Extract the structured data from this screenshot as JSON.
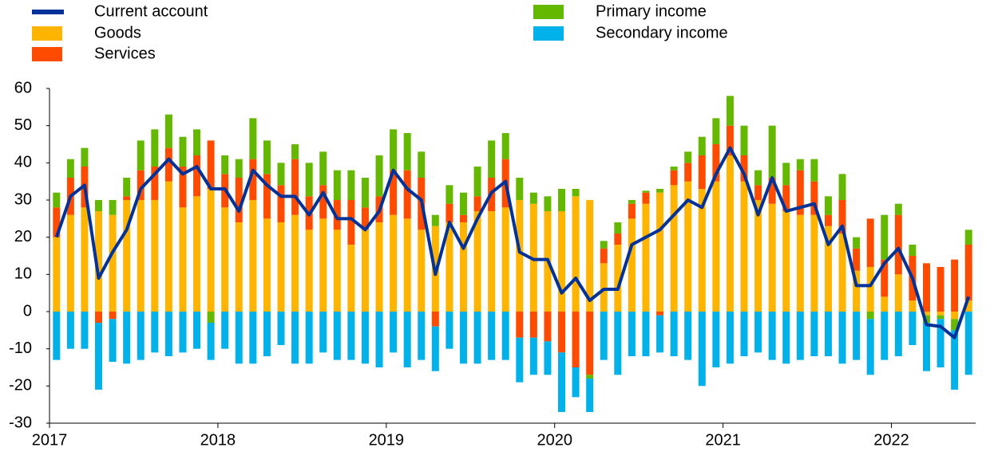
{
  "chart_data": {
    "type": "bar",
    "stacked": true,
    "categories": [
      "2017",
      null,
      null,
      null,
      null,
      null,
      null,
      null,
      null,
      null,
      null,
      null,
      "2018",
      null,
      null,
      null,
      null,
      null,
      null,
      null,
      null,
      null,
      null,
      null,
      "2019",
      null,
      null,
      null,
      null,
      null,
      null,
      null,
      null,
      null,
      null,
      null,
      "2020",
      null,
      null,
      null,
      null,
      null,
      null,
      null,
      null,
      null,
      null,
      null,
      "2021",
      null,
      null,
      null,
      null,
      null,
      null,
      null,
      null,
      null,
      null,
      null,
      "2022",
      null,
      null,
      null,
      null,
      null
    ],
    "series": [
      {
        "name": "Goods",
        "color": "#ffb400",
        "values": [
          20,
          26,
          28,
          27,
          26,
          30,
          30,
          30,
          35,
          28,
          31,
          33,
          28,
          24,
          30,
          25,
          24,
          26,
          22,
          25,
          22,
          18,
          22,
          24,
          26,
          25,
          22,
          23,
          24,
          24,
          27,
          27,
          28,
          30,
          29,
          27,
          27,
          31,
          30,
          13,
          18,
          25,
          29,
          32,
          34,
          35,
          33,
          35,
          42,
          35,
          30,
          29,
          27,
          26,
          26,
          23,
          21,
          11,
          12,
          4,
          10,
          3,
          -1,
          -1,
          -2,
          3
        ]
      },
      {
        "name": "Services",
        "color": "#ff4b00",
        "values": [
          8,
          10,
          11,
          -3,
          -2,
          1,
          8,
          9,
          9,
          11,
          11,
          13,
          9,
          12,
          11,
          12,
          10,
          15,
          9,
          9,
          8,
          12,
          6,
          7,
          12,
          13,
          14,
          -4,
          5,
          2,
          4,
          9,
          13,
          -7,
          -7,
          -8,
          -11,
          -15,
          -17,
          4,
          3,
          4,
          3,
          -1,
          4,
          5,
          9,
          10,
          8,
          7,
          4,
          7,
          7,
          12,
          9,
          3,
          9,
          6,
          13,
          10,
          16,
          12,
          13,
          12,
          14,
          15
        ]
      },
      {
        "name": "Primary income",
        "color": "#65b800",
        "values": [
          4,
          5,
          5,
          3,
          4,
          5,
          8,
          10,
          9,
          8,
          7,
          -3,
          5,
          5,
          11,
          9,
          6,
          4,
          9,
          9,
          8,
          8,
          8,
          11,
          11,
          10,
          7,
          3,
          5,
          6,
          8,
          10,
          7,
          6,
          3,
          4,
          6,
          2,
          -1,
          2,
          3,
          1,
          0.5,
          1,
          1,
          3,
          5,
          7,
          8,
          8,
          4,
          14,
          6,
          3,
          6,
          5,
          7,
          3,
          -2,
          12,
          3,
          3,
          -2,
          -1,
          -3,
          4
        ]
      },
      {
        "name": "Secondary income",
        "color": "#00b1ea",
        "values": [
          -13,
          -10,
          -10,
          -18,
          -11.5,
          -14,
          -13,
          -11,
          -12,
          -11,
          -10,
          -10,
          -10,
          -14,
          -14,
          -12,
          -9,
          -14,
          -14,
          -11,
          -13,
          -13,
          -14,
          -15,
          -11,
          -15,
          -13,
          -12,
          -10,
          -14,
          -14,
          -13,
          -13,
          -12,
          -10,
          -9,
          -16,
          -8,
          -9,
          -13,
          -17,
          -12,
          -12,
          -10,
          -12,
          -13,
          -20,
          -15,
          -14,
          -12,
          -11,
          -13,
          -14,
          -13,
          -12,
          -12,
          -14,
          -13,
          -15,
          -13,
          -12,
          -9,
          -13,
          -13,
          -16,
          -17
        ]
      },
      {
        "name": "Current account",
        "color": "#003299",
        "type": "line",
        "values": [
          20,
          31,
          34,
          9,
          16,
          22,
          33,
          37,
          41,
          37,
          39,
          33,
          33,
          27,
          38,
          34,
          31,
          31,
          26,
          32,
          25,
          25,
          22,
          27,
          38,
          33,
          30,
          10,
          24,
          17,
          25,
          32,
          35,
          16,
          14,
          14,
          5,
          9,
          3,
          6,
          6,
          18,
          20,
          22,
          26,
          30,
          28,
          37,
          44,
          37,
          26,
          36,
          27,
          28,
          29,
          18,
          23,
          7,
          7,
          13,
          17,
          9,
          -3.5,
          -4,
          -7,
          4
        ]
      }
    ],
    "ylim": [
      -30,
      60
    ],
    "yticks": [
      -30,
      -20,
      -10,
      0,
      10,
      20,
      30,
      40,
      50,
      60
    ],
    "grid": false,
    "legend": "top"
  }
}
